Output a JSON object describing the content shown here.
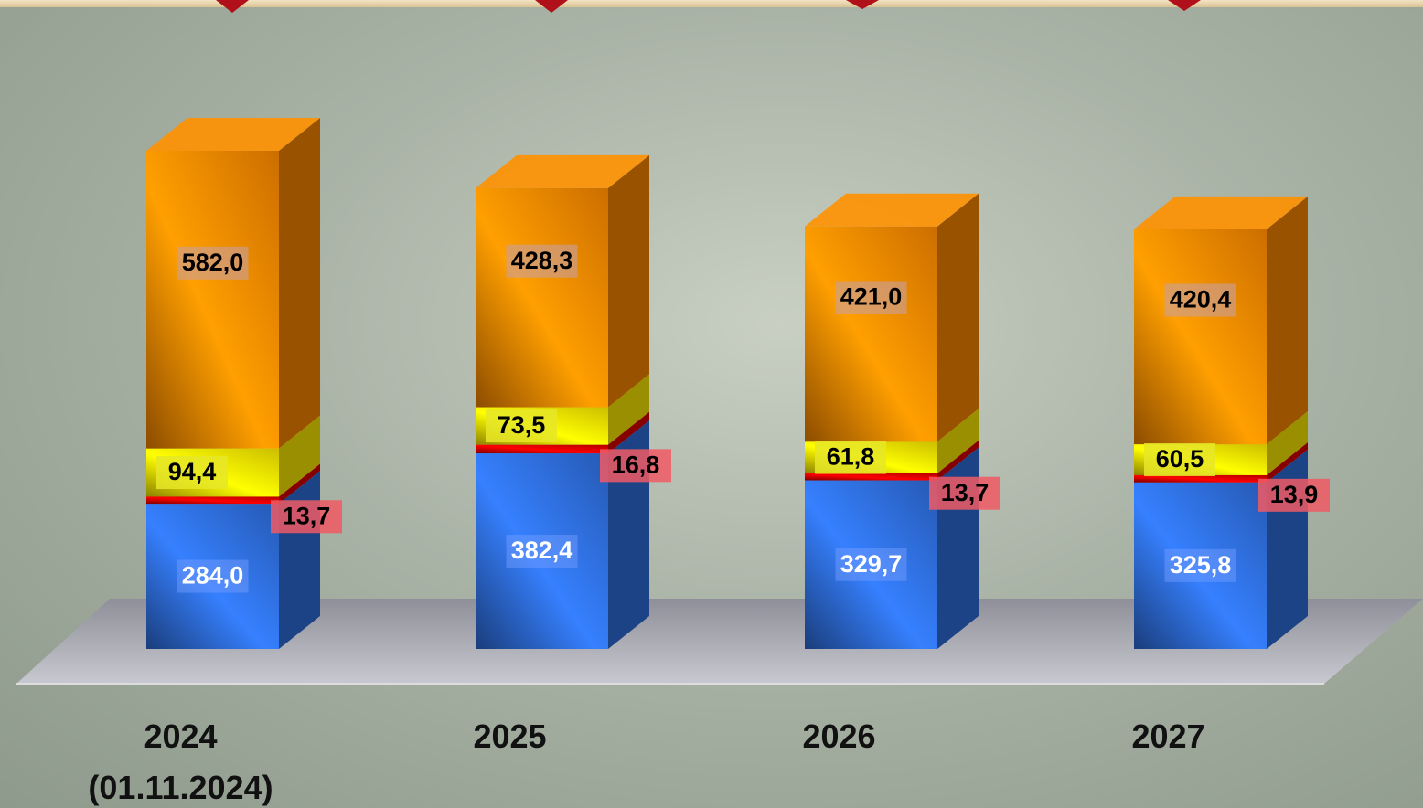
{
  "chart_data": {
    "type": "stacked-bar-3d",
    "categories": [
      "2024 (01.11.2024)",
      "2025",
      "2026",
      "2027"
    ],
    "series": [
      {
        "color": "#2f6fe0",
        "values": [
          284.0,
          382.4,
          329.7,
          325.8
        ],
        "value_labels": [
          "284,0",
          "382,4",
          "329,7",
          "325,8"
        ]
      },
      {
        "color": "#e00000",
        "values": [
          13.7,
          16.8,
          13.7,
          13.9
        ],
        "value_labels": [
          "13,7",
          "16,8",
          "13,7",
          "13,9"
        ]
      },
      {
        "color": "#ffee00",
        "values": [
          94.4,
          73.5,
          61.8,
          60.5
        ],
        "value_labels": [
          "94,4",
          "73,5",
          "61,8",
          "60,5"
        ]
      },
      {
        "color": "#ff8a00",
        "values": [
          582.0,
          428.3,
          421.0,
          420.4
        ],
        "value_labels": [
          "582,0",
          "428,3",
          "421,0",
          "420,4"
        ]
      }
    ]
  }
}
